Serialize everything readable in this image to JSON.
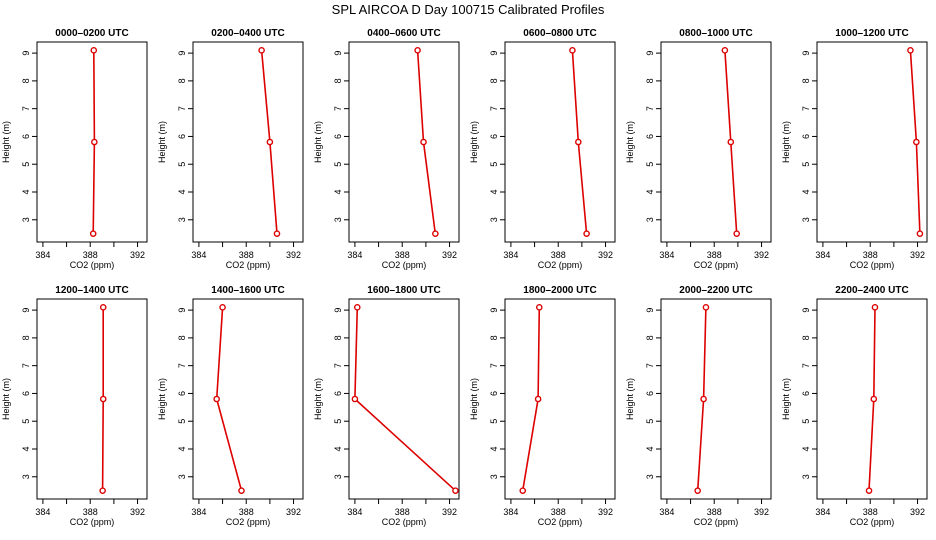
{
  "figure_title": "SPL AIRCOA D  Day 100715  Calibrated Profiles",
  "chart_data": [
    {
      "type": "line",
      "title": "0000–0200 UTC",
      "xlabel": "CO2 (ppm)",
      "ylabel": "Height (m)",
      "xlim": [
        383.5,
        392.8
      ],
      "ylim": [
        2.2,
        9.4
      ],
      "xticks": [
        "384",
        "388",
        "392"
      ],
      "yticks": [
        "3",
        "4",
        "5",
        "6",
        "7",
        "8",
        "9"
      ],
      "color": "#dd0000",
      "x": [
        388.3,
        388.35,
        388.25
      ],
      "y": [
        9.1,
        5.8,
        2.5
      ]
    },
    {
      "type": "line",
      "title": "0200–0400 UTC",
      "xlabel": "CO2 (ppm)",
      "ylabel": "Height (m)",
      "xlim": [
        383.5,
        392.8
      ],
      "ylim": [
        2.2,
        9.4
      ],
      "xticks": [
        "384",
        "388",
        "392"
      ],
      "yticks": [
        "3",
        "4",
        "5",
        "6",
        "7",
        "8",
        "9"
      ],
      "color": "#dd0000",
      "x": [
        389.3,
        390.0,
        390.6
      ],
      "y": [
        9.1,
        5.8,
        2.5
      ]
    },
    {
      "type": "line",
      "title": "0400–0600 UTC",
      "xlabel": "CO2 (ppm)",
      "ylabel": "Height (m)",
      "xlim": [
        383.5,
        392.8
      ],
      "ylim": [
        2.2,
        9.4
      ],
      "xticks": [
        "384",
        "388",
        "392"
      ],
      "yticks": [
        "3",
        "4",
        "5",
        "6",
        "7",
        "8",
        "9"
      ],
      "color": "#dd0000",
      "x": [
        389.3,
        389.8,
        390.8
      ],
      "y": [
        9.1,
        5.8,
        2.5
      ]
    },
    {
      "type": "line",
      "title": "0600–0800 UTC",
      "xlabel": "CO2 (ppm)",
      "ylabel": "Height (m)",
      "xlim": [
        383.5,
        392.8
      ],
      "ylim": [
        2.2,
        9.4
      ],
      "xticks": [
        "384",
        "388",
        "392"
      ],
      "yticks": [
        "3",
        "4",
        "5",
        "6",
        "7",
        "8",
        "9"
      ],
      "color": "#dd0000",
      "x": [
        389.2,
        389.7,
        390.4
      ],
      "y": [
        9.1,
        5.8,
        2.5
      ]
    },
    {
      "type": "line",
      "title": "0800–1000 UTC",
      "xlabel": "CO2 (ppm)",
      "ylabel": "Height (m)",
      "xlim": [
        383.5,
        392.8
      ],
      "ylim": [
        2.2,
        9.4
      ],
      "xticks": [
        "384",
        "388",
        "392"
      ],
      "yticks": [
        "3",
        "4",
        "5",
        "6",
        "7",
        "8",
        "9"
      ],
      "color": "#dd0000",
      "x": [
        388.9,
        389.4,
        389.9
      ],
      "y": [
        9.1,
        5.8,
        2.5
      ]
    },
    {
      "type": "line",
      "title": "1000–1200 UTC",
      "xlabel": "CO2 (ppm)",
      "ylabel": "Height (m)",
      "xlim": [
        383.5,
        392.8
      ],
      "ylim": [
        2.2,
        9.4
      ],
      "xticks": [
        "384",
        "388",
        "392"
      ],
      "yticks": [
        "3",
        "4",
        "5",
        "6",
        "7",
        "8",
        "9"
      ],
      "color": "#dd0000",
      "x": [
        391.4,
        391.9,
        392.2
      ],
      "y": [
        9.1,
        5.8,
        2.5
      ]
    },
    {
      "type": "line",
      "title": "1200–1400 UTC",
      "xlabel": "CO2 (ppm)",
      "ylabel": "Height (m)",
      "xlim": [
        383.5,
        392.8
      ],
      "ylim": [
        2.2,
        9.4
      ],
      "xticks": [
        "384",
        "388",
        "392"
      ],
      "yticks": [
        "3",
        "4",
        "5",
        "6",
        "7",
        "8",
        "9"
      ],
      "color": "#dd0000",
      "x": [
        389.1,
        389.1,
        389.05
      ],
      "y": [
        9.1,
        5.8,
        2.5
      ]
    },
    {
      "type": "line",
      "title": "1400–1600 UTC",
      "xlabel": "CO2 (ppm)",
      "ylabel": "Height (m)",
      "xlim": [
        383.5,
        392.8
      ],
      "ylim": [
        2.2,
        9.4
      ],
      "xticks": [
        "384",
        "388",
        "392"
      ],
      "yticks": [
        "3",
        "4",
        "5",
        "6",
        "7",
        "8",
        "9"
      ],
      "color": "#dd0000",
      "x": [
        386.0,
        385.5,
        387.6
      ],
      "y": [
        9.1,
        5.8,
        2.5
      ]
    },
    {
      "type": "line",
      "title": "1600–1800 UTC",
      "xlabel": "CO2 (ppm)",
      "ylabel": "Height (m)",
      "xlim": [
        383.5,
        392.8
      ],
      "ylim": [
        2.2,
        9.4
      ],
      "xticks": [
        "384",
        "388",
        "392"
      ],
      "yticks": [
        "3",
        "4",
        "5",
        "6",
        "7",
        "8",
        "9"
      ],
      "color": "#dd0000",
      "x": [
        384.2,
        384.0,
        392.5
      ],
      "y": [
        9.1,
        5.8,
        2.5
      ]
    },
    {
      "type": "line",
      "title": "1800–2000 UTC",
      "xlabel": "CO2 (ppm)",
      "ylabel": "Height (m)",
      "xlim": [
        383.5,
        392.8
      ],
      "ylim": [
        2.2,
        9.4
      ],
      "xticks": [
        "384",
        "388",
        "392"
      ],
      "yticks": [
        "3",
        "4",
        "5",
        "6",
        "7",
        "8",
        "9"
      ],
      "color": "#dd0000",
      "x": [
        386.4,
        386.3,
        385.0
      ],
      "y": [
        9.1,
        5.8,
        2.5
      ]
    },
    {
      "type": "line",
      "title": "2000–2200 UTC",
      "xlabel": "CO2 (ppm)",
      "ylabel": "Height (m)",
      "xlim": [
        383.5,
        392.8
      ],
      "ylim": [
        2.2,
        9.4
      ],
      "xticks": [
        "384",
        "388",
        "392"
      ],
      "yticks": [
        "3",
        "4",
        "5",
        "6",
        "7",
        "8",
        "9"
      ],
      "color": "#dd0000",
      "x": [
        387.3,
        387.1,
        386.6
      ],
      "y": [
        9.1,
        5.8,
        2.5
      ]
    },
    {
      "type": "line",
      "title": "2200–2400 UTC",
      "xlabel": "CO2 (ppm)",
      "ylabel": "Height (m)",
      "xlim": [
        383.5,
        392.8
      ],
      "ylim": [
        2.2,
        9.4
      ],
      "xticks": [
        "384",
        "388",
        "392"
      ],
      "yticks": [
        "3",
        "4",
        "5",
        "6",
        "7",
        "8",
        "9"
      ],
      "color": "#dd0000",
      "x": [
        388.4,
        388.3,
        387.9
      ],
      "y": [
        9.1,
        5.8,
        2.5
      ]
    }
  ]
}
